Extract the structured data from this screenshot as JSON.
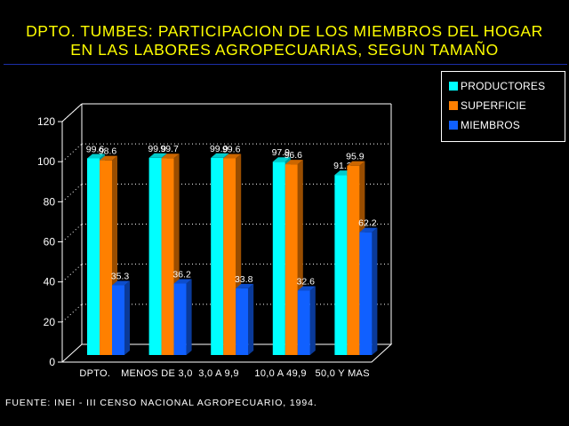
{
  "header": {
    "title_line1": "DPTO. TUMBES: PARTICIPACION DE LOS MIEMBROS DEL HOGAR",
    "title_line2": "EN LAS LABORES AGROPECUARIAS, SEGUN TAMAÑO"
  },
  "source": "FUENTE: INEI - III CENSO NACIONAL AGROPECUARIO, 1994.",
  "legend": {
    "items": [
      {
        "label": "PRODUCTORES",
        "color": "#00ffff"
      },
      {
        "label": "SUPERFICIE",
        "color": "#ff8000"
      },
      {
        "label": "MIEMBROS",
        "color": "#1060ff"
      }
    ]
  },
  "chart_data": {
    "type": "bar",
    "title": "DPTO. TUMBES: PARTICIPACION DE LOS MIEMBROS DEL HOGAR EN LAS LABORES AGROPECUARIAS, SEGUN TAMAÑO",
    "categories": [
      "DPTO.",
      "MENOS DE 3,0",
      "3,0 A 9,9",
      "10,0 A 49,9",
      "50,0 Y MAS"
    ],
    "series": [
      {
        "name": "PRODUCTORES",
        "color": "#00ffff",
        "values": [
          99.6,
          99.9,
          99.9,
          97.9,
          91.2
        ],
        "labels": [
          "99.6",
          "99.9",
          "99.9",
          "97.9",
          "91.2"
        ]
      },
      {
        "name": "SUPERFICIE",
        "color": "#ff8000",
        "values": [
          98.6,
          99.7,
          99.6,
          96.6,
          95.9
        ],
        "labels": [
          "98.6",
          "99.7",
          "99.6",
          "96.6",
          "95.9"
        ]
      },
      {
        "name": "MIEMBROS",
        "color": "#1060ff",
        "values": [
          35.3,
          36.2,
          33.8,
          32.6,
          62.2
        ],
        "labels": [
          "35.3",
          "36.2",
          "33.8",
          "32.6",
          "62.2"
        ]
      }
    ],
    "ylim": [
      0,
      120
    ],
    "yticks": [
      0,
      20,
      40,
      60,
      80,
      100,
      120
    ],
    "grid": true,
    "legend_position": "top-right"
  }
}
